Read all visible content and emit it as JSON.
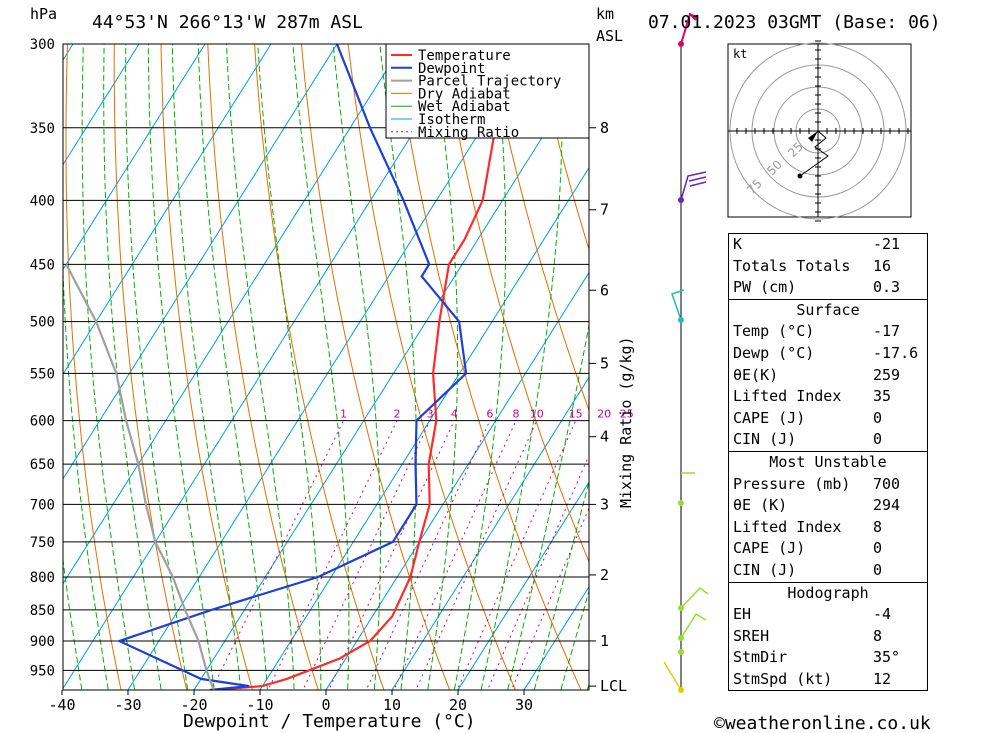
{
  "header": {
    "location": "44°53'N  266°13'W  287m  ASL",
    "datetime": "07.01.2023  03GMT  (Base: 06)",
    "pressure_unit": "hPa",
    "height_unit": "km",
    "height_unit2": "ASL"
  },
  "footer": {
    "copyright": "©weatheronline.co.uk"
  },
  "colors": {
    "temperature": "#ff2a2a",
    "dewpoint": "#1f3fd6",
    "parcel": "#a0a0a0",
    "dry_adiabat": "#e07000",
    "wet_adiabat": "#00b000",
    "isotherm": "#00a0e0",
    "mixing_ratio": "#d0008a"
  },
  "chart_data": {
    "type": "line",
    "xlabel": "Dewpoint / Temperature (°C)",
    "ylabel": "hPa",
    "x_ticks": [
      "-40",
      "-30",
      "-20",
      "-10",
      "0",
      "10",
      "20",
      "30"
    ],
    "x_tick_values": [
      -40,
      -30,
      -20,
      -10,
      0,
      10,
      20,
      30
    ],
    "pressure_levels": [
      300,
      350,
      400,
      450,
      500,
      550,
      600,
      650,
      700,
      750,
      800,
      850,
      900,
      950
    ],
    "ylim": [
      985,
      300
    ],
    "km_ticks": [
      {
        "label": "8",
        "p": 350
      },
      {
        "label": "7",
        "p": 407
      },
      {
        "label": "6",
        "p": 472
      },
      {
        "label": "5",
        "p": 540
      },
      {
        "label": "4",
        "p": 618
      },
      {
        "label": "3",
        "p": 700
      },
      {
        "label": "2",
        "p": 797
      },
      {
        "label": "1",
        "p": 900
      },
      {
        "label": "LCL",
        "p": 978
      }
    ],
    "mixing_ratio_label": "Mixing Ratio (g/kg)",
    "mixing_ratio_values": [
      "1",
      "2",
      "3",
      "4",
      "6",
      "8",
      "10",
      "15",
      "20",
      "25"
    ],
    "legend": [
      "Temperature",
      "Dewpoint",
      "Parcel Trajectory",
      "Dry Adiabat",
      "Wet Adiabat",
      "Isotherm",
      "Mixing Ratio"
    ],
    "legend_placement": "top-right",
    "series": [
      {
        "name": "Temperature",
        "points": [
          [
            -17,
            985
          ],
          [
            -10,
            978
          ],
          [
            -7,
            965
          ],
          [
            -1,
            930
          ],
          [
            2,
            900
          ],
          [
            3,
            860
          ],
          [
            2,
            800
          ],
          [
            0,
            750
          ],
          [
            -2,
            700
          ],
          [
            -6,
            650
          ],
          [
            -9,
            600
          ],
          [
            -14,
            550
          ],
          [
            -18,
            500
          ],
          [
            -22,
            450
          ],
          [
            -22,
            430
          ],
          [
            -23,
            400
          ],
          [
            -28,
            350
          ],
          [
            -32,
            300
          ]
        ]
      },
      {
        "name": "Dewpoint",
        "points": [
          [
            -17.6,
            985
          ],
          [
            -12,
            978
          ],
          [
            -20,
            965
          ],
          [
            -36,
            900
          ],
          [
            -25,
            850
          ],
          [
            -12,
            800
          ],
          [
            -4,
            750
          ],
          [
            -4,
            700
          ],
          [
            -8,
            650
          ],
          [
            -12,
            600
          ],
          [
            -9,
            550
          ],
          [
            -15,
            500
          ],
          [
            -25,
            460
          ],
          [
            -25,
            450
          ],
          [
            -35,
            400
          ],
          [
            -47,
            350
          ],
          [
            -60,
            300
          ]
        ]
      },
      {
        "name": "Parcel Trajectory",
        "points": [
          [
            -17,
            985
          ],
          [
            -20,
            950
          ],
          [
            -24,
            900
          ],
          [
            -29,
            850
          ],
          [
            -34,
            800
          ],
          [
            -40,
            750
          ],
          [
            -45,
            700
          ],
          [
            -50,
            650
          ],
          [
            -56,
            600
          ],
          [
            -62,
            550
          ],
          [
            -70,
            500
          ],
          [
            -80,
            450
          ]
        ]
      }
    ]
  },
  "hodograph": {
    "unit": "kt",
    "rings": [
      "25",
      "50",
      "75"
    ]
  },
  "stats": {
    "indices": [
      {
        "label": "K",
        "value": "-21"
      },
      {
        "label": "Totals Totals",
        "value": "16"
      },
      {
        "label": "PW (cm)",
        "value": "0.3"
      }
    ],
    "surface": {
      "title": "Surface",
      "rows": [
        {
          "label": "Temp (°C)",
          "value": "-17"
        },
        {
          "label": "Dewp (°C)",
          "value": "-17.6"
        },
        {
          "label": "θE(K)",
          "value": "259"
        },
        {
          "label": "Lifted Index",
          "value": "35"
        },
        {
          "label": "CAPE (J)",
          "value": "0"
        },
        {
          "label": "CIN (J)",
          "value": "0"
        }
      ]
    },
    "most_unstable": {
      "title": "Most Unstable",
      "rows": [
        {
          "label": "Pressure (mb)",
          "value": "700"
        },
        {
          "label": "θE (K)",
          "value": "294"
        },
        {
          "label": "Lifted Index",
          "value": "8"
        },
        {
          "label": "CAPE (J)",
          "value": "0"
        },
        {
          "label": "CIN (J)",
          "value": "0"
        }
      ]
    },
    "hodograph": {
      "title": "Hodograph",
      "rows": [
        {
          "label": "EH",
          "value": "-4"
        },
        {
          "label": "SREH",
          "value": "8"
        },
        {
          "label": "StmDir",
          "value": "35°"
        },
        {
          "label": "StmSpd (kt)",
          "value": "12"
        }
      ]
    }
  }
}
